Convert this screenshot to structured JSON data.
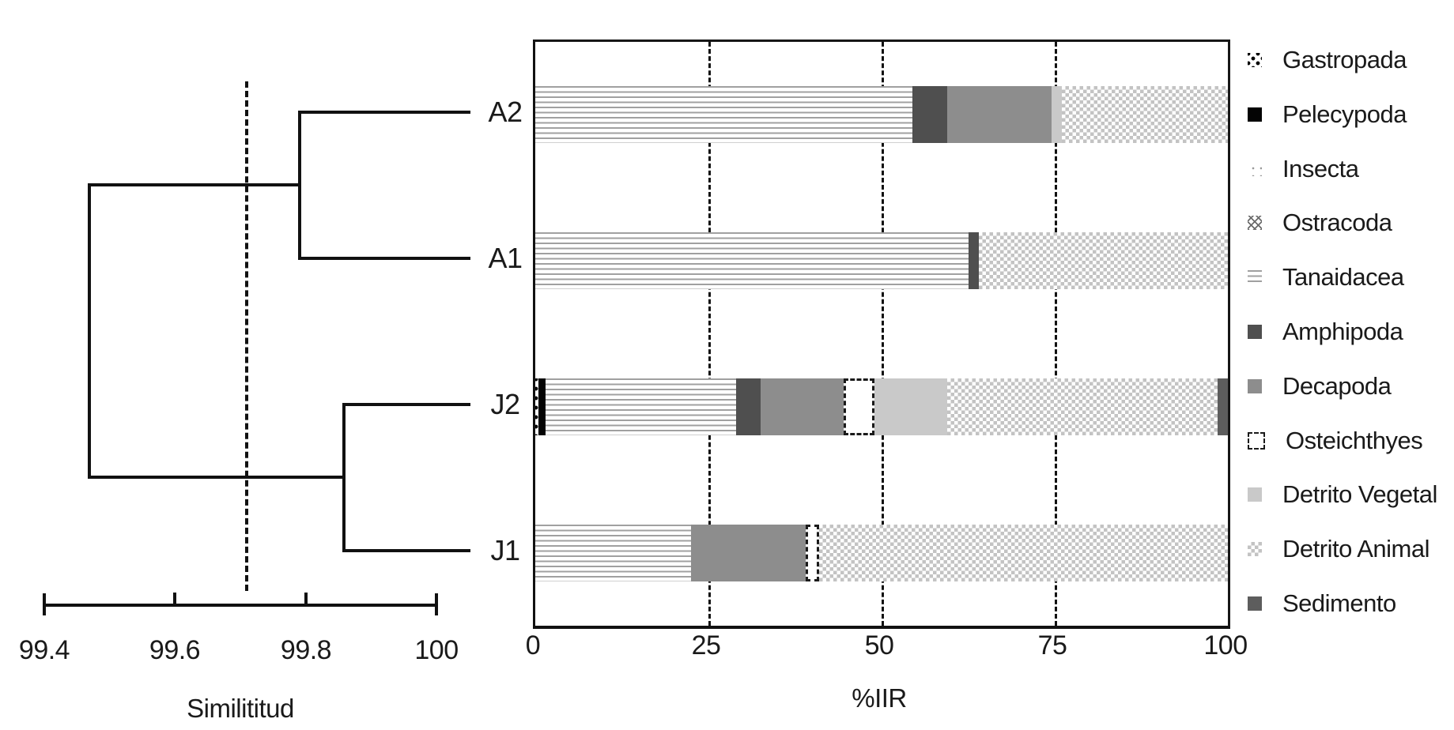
{
  "dendro": {
    "axis_label": "Similititud",
    "ticks": [
      "99.4",
      "99.6",
      "99.8",
      "100"
    ],
    "leaves": [
      "A2",
      "A1",
      "J2",
      "J1"
    ]
  },
  "bars": {
    "xlabel": "%IIR",
    "ticks": [
      "0",
      "25",
      "50",
      "75",
      "100"
    ],
    "categories": [
      "A2",
      "A1",
      "J2",
      "J1"
    ]
  },
  "legend": {
    "items": [
      {
        "id": "gastropada",
        "label": "Gastropada"
      },
      {
        "id": "pelecypoda",
        "label": "Pelecypoda"
      },
      {
        "id": "insecta",
        "label": "Insecta"
      },
      {
        "id": "ostracoda",
        "label": "Ostracoda"
      },
      {
        "id": "tanaidacea",
        "label": "Tanaidacea"
      },
      {
        "id": "amphipoda",
        "label": "Amphipoda"
      },
      {
        "id": "decapoda",
        "label": "Decapoda"
      },
      {
        "id": "osteichthyes",
        "label": "Osteichthyes"
      },
      {
        "id": "detrito-vegetal",
        "label": "Detrito Vegetal"
      },
      {
        "id": "detrito-animal",
        "label": "Detrito Animal"
      },
      {
        "id": "sedimento",
        "label": "Sedimento"
      }
    ]
  },
  "colors": {
    "line": "#111111",
    "amphipoda": "#4f4f4f",
    "decapoda": "#8d8d8d",
    "detrito_vegetal": "#c9c9c9",
    "sedimento": "#5d5d5d",
    "pelecypoda": "#040404"
  },
  "chart_data": [
    {
      "type": "dendrogram",
      "orientation": "horizontal",
      "axis_label": "Similititud",
      "axis_range": [
        99.4,
        100
      ],
      "axis_ticks": [
        99.4,
        99.6,
        99.8,
        100
      ],
      "leaves": [
        "A2",
        "A1",
        "J2",
        "J1"
      ],
      "merges": [
        {
          "members": [
            "A2",
            "A1"
          ],
          "similarity": 99.79
        },
        {
          "members": [
            "J2",
            "J1"
          ],
          "similarity": 99.86
        },
        {
          "members": [
            "A2",
            "A1",
            "J2",
            "J1"
          ],
          "similarity": 99.47
        }
      ],
      "cut_line_similarity": 99.71
    },
    {
      "type": "bar",
      "stacked": true,
      "orientation": "horizontal",
      "categories": [
        "A2",
        "A1",
        "J2",
        "J1"
      ],
      "xlabel": "%IIR",
      "xlim": [
        0,
        100
      ],
      "xticks": [
        0,
        25,
        50,
        75,
        100
      ],
      "grid": "dashed-vertical-at-25-50-75",
      "legend_position": "right",
      "series": [
        {
          "name": "Gastropada",
          "pattern": "gastropada",
          "values": [
            0,
            0,
            0.5,
            0
          ]
        },
        {
          "name": "Pelecypoda",
          "pattern": "pelecypoda",
          "values": [
            0,
            0,
            1,
            0
          ]
        },
        {
          "name": "Insecta",
          "pattern": "insecta",
          "values": [
            0,
            0,
            0,
            0
          ]
        },
        {
          "name": "Ostracoda",
          "pattern": "ostracoda",
          "values": [
            0,
            0,
            0,
            0
          ]
        },
        {
          "name": "Tanaidacea",
          "pattern": "tanaidacea",
          "values": [
            54.5,
            62.5,
            27.5,
            22.5
          ]
        },
        {
          "name": "Amphipoda",
          "pattern": "amphipoda",
          "values": [
            5,
            1.5,
            3.5,
            0
          ]
        },
        {
          "name": "Decapoda",
          "pattern": "decapoda",
          "values": [
            15,
            0,
            12,
            16.5
          ]
        },
        {
          "name": "Osteichthyes",
          "pattern": "osteichthyes",
          "values": [
            0,
            0,
            4.5,
            2
          ]
        },
        {
          "name": "Detrito Vegetal",
          "pattern": "detrito-vegetal",
          "values": [
            1.5,
            0,
            10.5,
            0
          ]
        },
        {
          "name": "Detrito Animal",
          "pattern": "detrito-animal",
          "values": [
            24,
            36,
            39,
            59
          ]
        },
        {
          "name": "Sedimento",
          "pattern": "sedimento",
          "values": [
            0,
            0,
            1.5,
            0
          ]
        }
      ]
    }
  ]
}
